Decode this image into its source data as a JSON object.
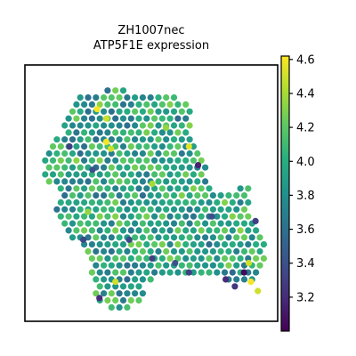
{
  "chart_data": {
    "type": "scatter",
    "title_line1": "ZH1007nec",
    "title_line2": "ATP5F1E expression",
    "xlabel": "",
    "ylabel": "",
    "colormap": "viridis",
    "colorbar": {
      "range": [
        3.0,
        4.62
      ],
      "ticks": [
        3.2,
        3.4,
        3.6,
        3.8,
        4.0,
        4.2,
        4.4,
        4.6
      ],
      "tick_labels": [
        "3.2",
        "3.4",
        "3.6",
        "3.8",
        "4.0",
        "4.2",
        "4.4",
        "4.6"
      ]
    },
    "spot_grid": {
      "x_range": [
        0,
        100
      ],
      "y_range": [
        0,
        100
      ],
      "row_step": 3.0,
      "col_step": 3.4
    },
    "tissue_region_polygon": [
      [
        14,
        12
      ],
      [
        20,
        8
      ],
      [
        28,
        6
      ],
      [
        38,
        6
      ],
      [
        48,
        7
      ],
      [
        58,
        8
      ],
      [
        66,
        10
      ],
      [
        68,
        16
      ],
      [
        66,
        22
      ],
      [
        70,
        28
      ],
      [
        72,
        34
      ],
      [
        74,
        42
      ],
      [
        78,
        48
      ],
      [
        84,
        50
      ],
      [
        88,
        46
      ],
      [
        92,
        48
      ],
      [
        92,
        56
      ],
      [
        94,
        62
      ],
      [
        98,
        66
      ],
      [
        100,
        72
      ],
      [
        99,
        82
      ],
      [
        94,
        88
      ],
      [
        86,
        90
      ],
      [
        80,
        86
      ],
      [
        72,
        84
      ],
      [
        62,
        86
      ],
      [
        54,
        84
      ],
      [
        48,
        88
      ],
      [
        46,
        96
      ],
      [
        40,
        100
      ],
      [
        32,
        100
      ],
      [
        26,
        96
      ],
      [
        24,
        88
      ],
      [
        22,
        80
      ],
      [
        20,
        72
      ],
      [
        12,
        68
      ],
      [
        8,
        58
      ],
      [
        10,
        50
      ],
      [
        4,
        46
      ],
      [
        2,
        38
      ],
      [
        4,
        30
      ],
      [
        10,
        26
      ],
      [
        12,
        18
      ]
    ],
    "high_expression_spots": [
      {
        "x": 26,
        "y": 14,
        "value": 4.6
      },
      {
        "x": 30,
        "y": 18,
        "value": 4.5
      },
      {
        "x": 30,
        "y": 28,
        "value": 4.6
      },
      {
        "x": 32,
        "y": 31,
        "value": 4.5
      },
      {
        "x": 66,
        "y": 30,
        "value": 4.55
      },
      {
        "x": 92,
        "y": 80,
        "value": 4.5
      },
      {
        "x": 93,
        "y": 88,
        "value": 4.6
      },
      {
        "x": 96,
        "y": 92,
        "value": 4.5
      },
      {
        "x": 34,
        "y": 88,
        "value": 4.5
      },
      {
        "x": 50,
        "y": 46,
        "value": 4.4
      },
      {
        "x": 22,
        "y": 58,
        "value": 4.35
      },
      {
        "x": 56,
        "y": 22,
        "value": 4.35
      }
    ],
    "low_expression_spots": [
      {
        "x": 90,
        "y": 84,
        "value": 3.05
      },
      {
        "x": 70,
        "y": 38,
        "value": 3.15
      },
      {
        "x": 27,
        "y": 95,
        "value": 3.2
      },
      {
        "x": 50,
        "y": 78,
        "value": 3.3
      },
      {
        "x": 82,
        "y": 87,
        "value": 3.2
      },
      {
        "x": 86,
        "y": 90,
        "value": 3.25
      },
      {
        "x": 14,
        "y": 30,
        "value": 3.3
      },
      {
        "x": 66,
        "y": 84,
        "value": 3.3
      },
      {
        "x": 40,
        "y": 70,
        "value": 3.35
      },
      {
        "x": 20,
        "y": 70,
        "value": 3.35
      },
      {
        "x": 60,
        "y": 80,
        "value": 3.4
      },
      {
        "x": 24,
        "y": 40,
        "value": 3.4
      },
      {
        "x": 76,
        "y": 60,
        "value": 3.4
      },
      {
        "x": 95,
        "y": 62,
        "value": 3.3
      }
    ],
    "typical_value_range": [
      3.6,
      4.3
    ]
  }
}
